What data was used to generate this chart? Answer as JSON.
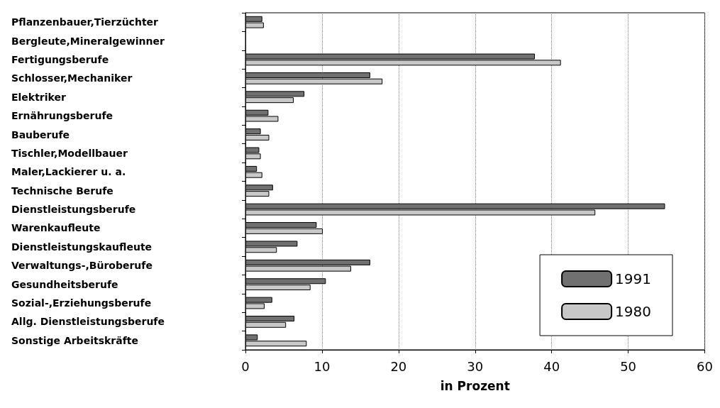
{
  "chart_data": {
    "type": "bar",
    "orientation": "horizontal",
    "xlabel": "in Prozent",
    "categories": [
      "Pflanzenbauer,Tierzüchter",
      "Bergleute,Mineralgewinner",
      "Fertigungsberufe",
      "Schlosser,Mechaniker",
      "Elektriker",
      "Ernährungsberufe",
      "Bauberufe",
      "Tischler,Modellbauer",
      "Maler,Lackierer u. a.",
      "Technische Berufe",
      "Dienstleistungsberufe",
      "Warenkaufleute",
      "Dienstleistungskaufleute",
      "Verwaltungs-,Büroberufe",
      "Gesundheitsberufe",
      "Sozial-,Erziehungsberufe",
      "Allg. Dienstleistungsberufe",
      "Sonstige Arbeitskräfte"
    ],
    "series": [
      {
        "name": "1991",
        "color": "#707070",
        "values": [
          2.2,
          null,
          37.8,
          16.3,
          7.7,
          3.0,
          2.0,
          1.8,
          1.5,
          3.6,
          54.8,
          9.3,
          6.8,
          16.3,
          10.5,
          3.5,
          6.4,
          1.6
        ]
      },
      {
        "name": "1980",
        "color": "#c8c8c8",
        "values": [
          2.4,
          null,
          41.2,
          17.9,
          6.3,
          4.3,
          3.1,
          2.0,
          2.2,
          3.1,
          45.7,
          10.1,
          4.1,
          13.8,
          8.5,
          2.5,
          5.3,
          8.0
        ]
      }
    ],
    "xlim": [
      0,
      60
    ],
    "xticks": [
      0,
      10,
      20,
      30,
      40,
      50,
      60
    ],
    "grid": "x",
    "legend": "bottom right"
  }
}
